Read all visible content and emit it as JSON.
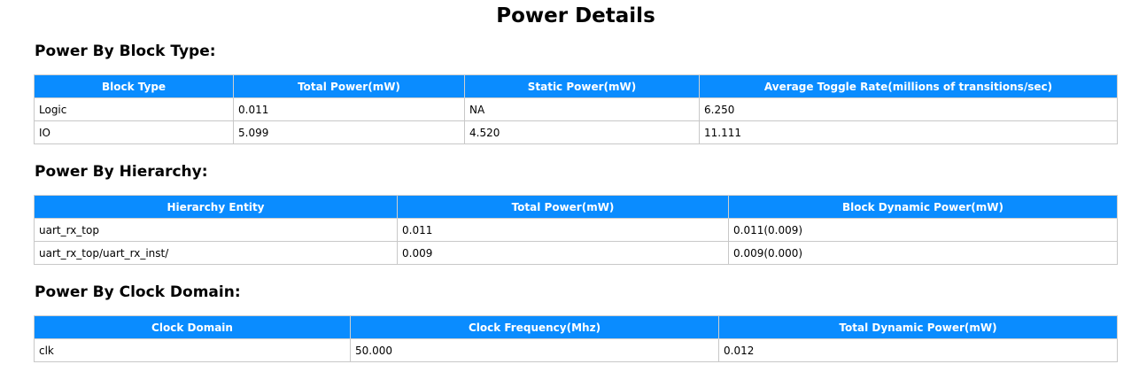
{
  "page_title": "Power Details",
  "sections": [
    {
      "title": "Power By Block Type:",
      "headers": [
        "Block Type",
        "Total Power(mW)",
        "Static Power(mW)",
        "Average Toggle Rate(millions of transitions/sec)"
      ],
      "rows": [
        [
          "Logic",
          "0.011",
          "NA",
          "6.250"
        ],
        [
          "IO",
          "5.099",
          "4.520",
          "11.111"
        ]
      ]
    },
    {
      "title": "Power By Hierarchy:",
      "headers": [
        "Hierarchy Entity",
        "Total Power(mW)",
        "Block Dynamic Power(mW)"
      ],
      "rows": [
        [
          "uart_rx_top",
          "0.011",
          "0.011(0.009)"
        ],
        [
          "uart_rx_top/uart_rx_inst/",
          "0.009",
          "0.009(0.000)"
        ]
      ]
    },
    {
      "title": "Power By Clock Domain:",
      "headers": [
        "Clock Domain",
        "Clock Frequency(Mhz)",
        "Total Dynamic Power(mW)"
      ],
      "rows": [
        [
          "clk",
          "50.000",
          "0.012"
        ]
      ]
    }
  ],
  "colors": {
    "header_bg": "#0a8cff",
    "header_text": "#ffffff",
    "border": "#c8c8c8"
  }
}
